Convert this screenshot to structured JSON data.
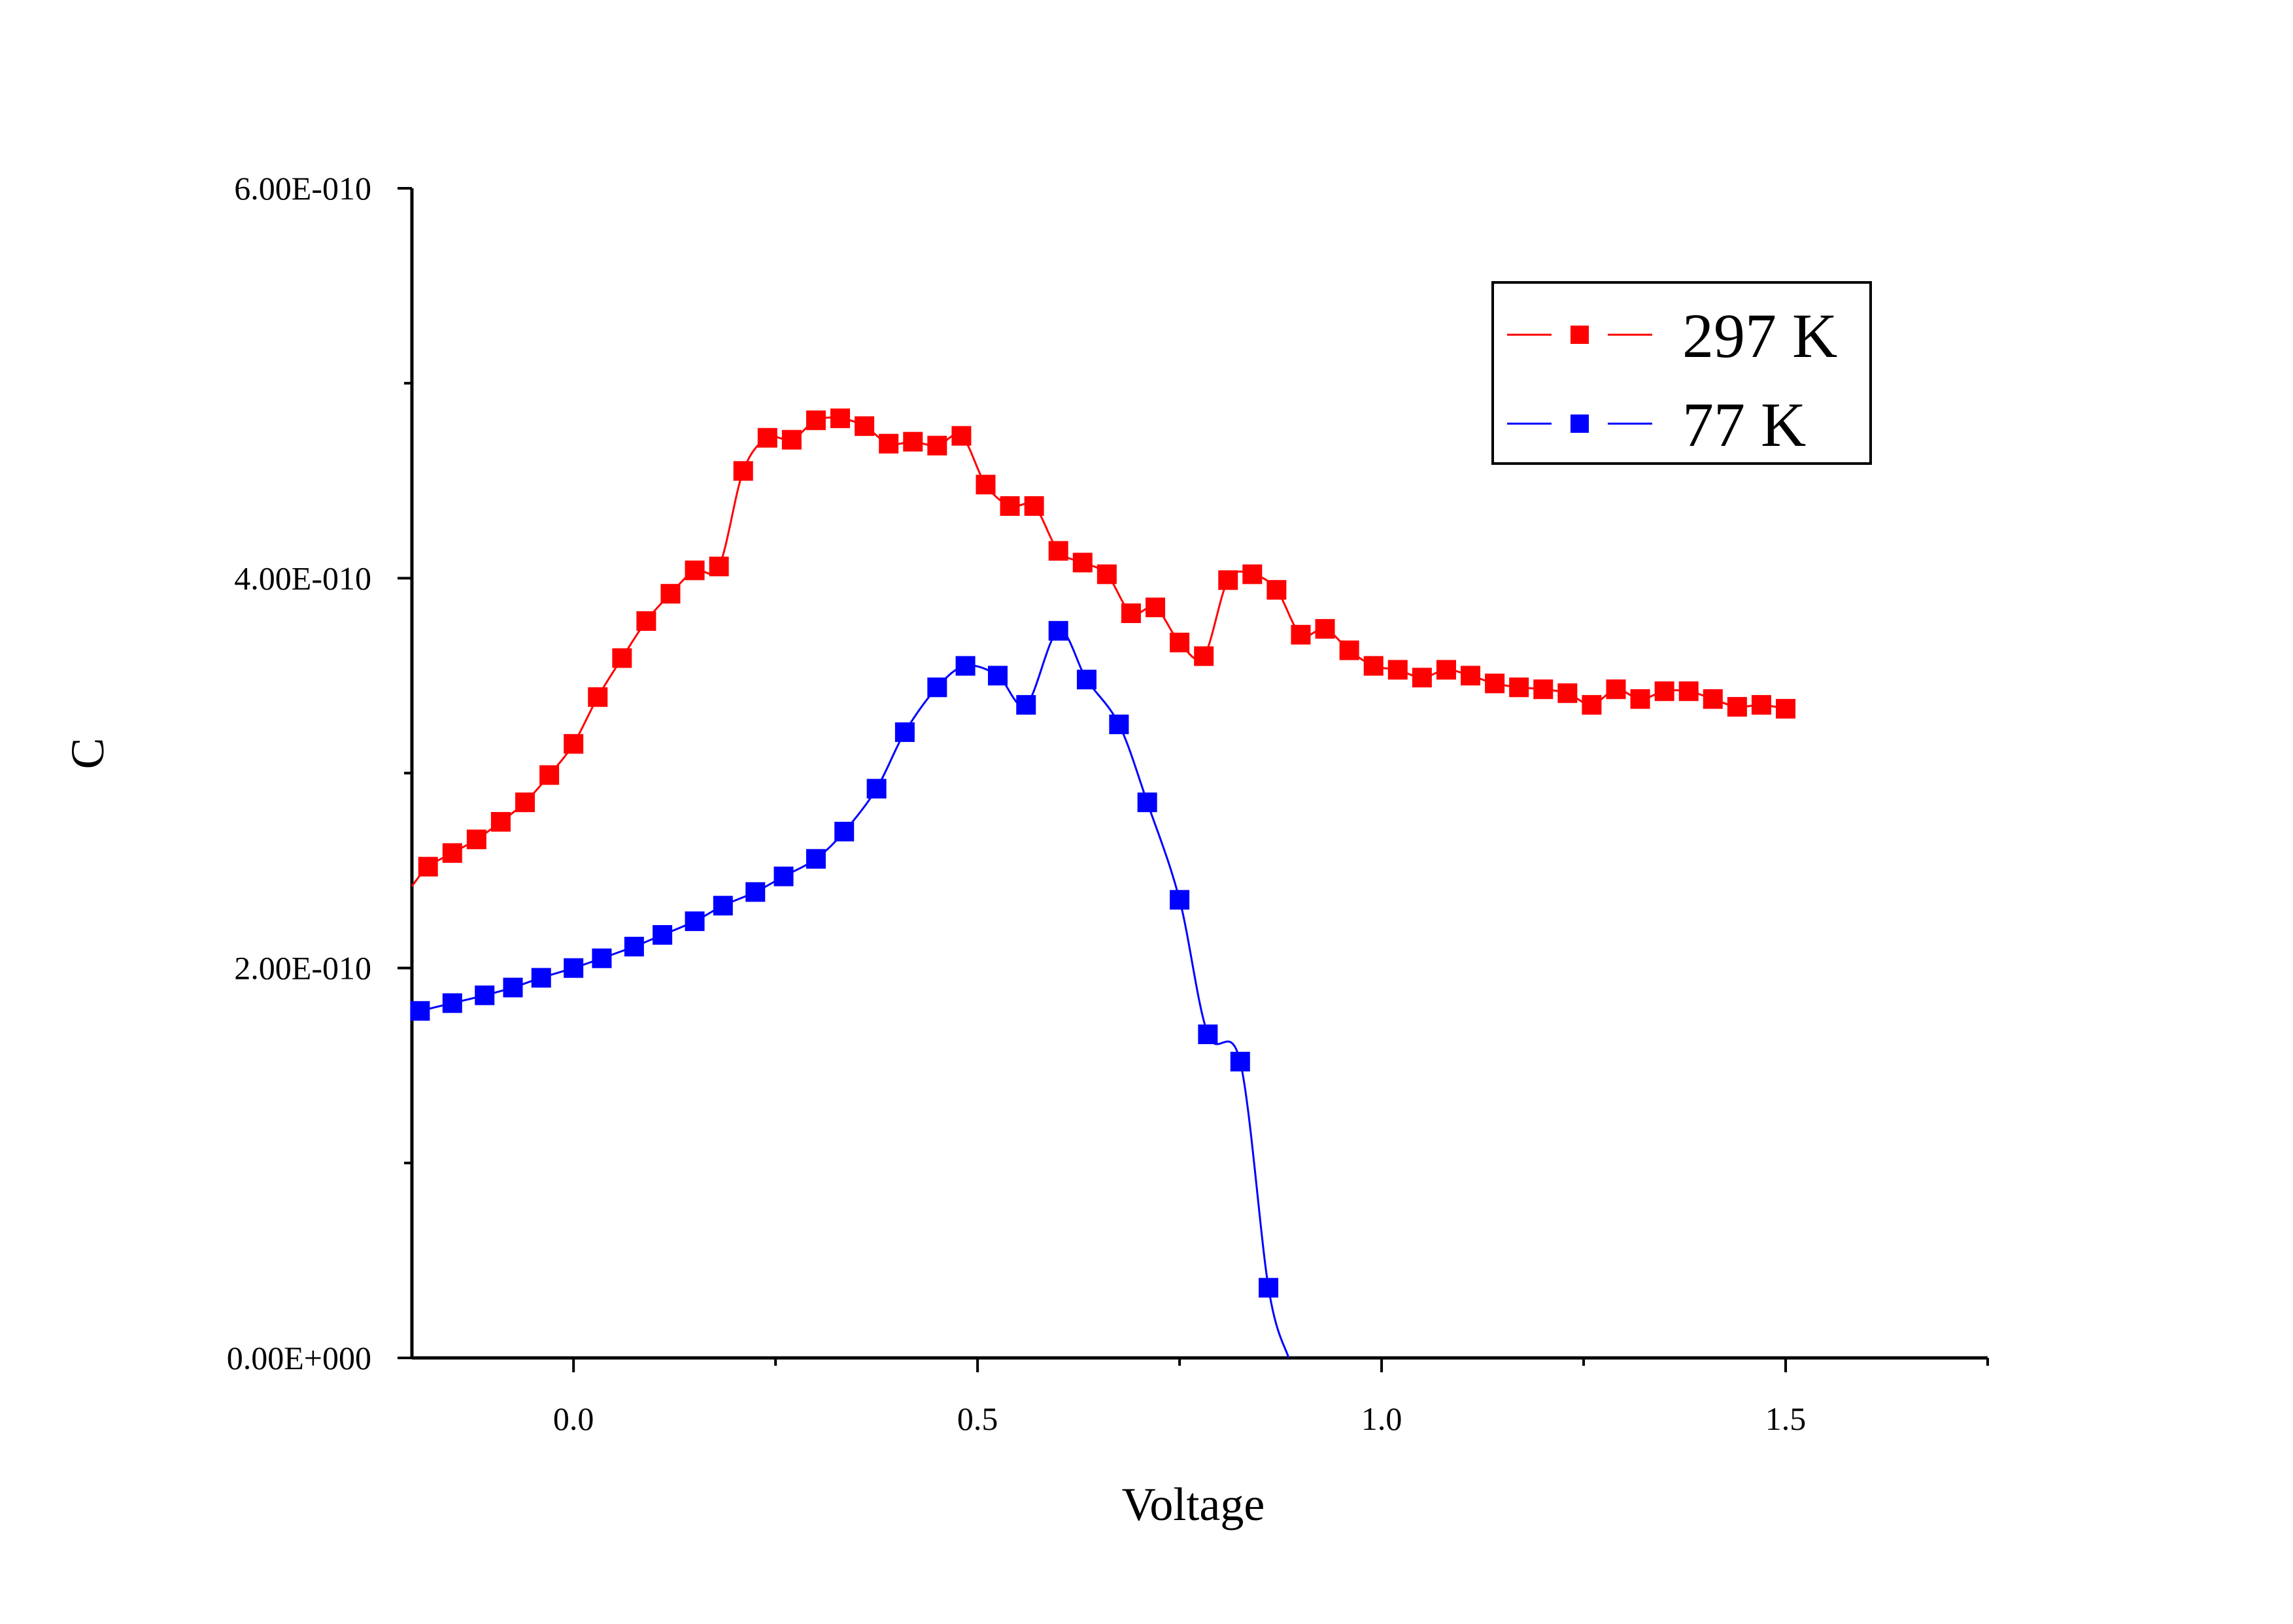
{
  "chart_data": {
    "type": "line",
    "title": "",
    "xlabel": "Voltage",
    "ylabel": "C",
    "xlim": [
      -0.2,
      1.75
    ],
    "ylim": [
      0,
      6e-10
    ],
    "x_ticks": [
      {
        "value": 0.0,
        "label": "0.0"
      },
      {
        "value": 0.5,
        "label": "0.5"
      },
      {
        "value": 1.0,
        "label": "1.0"
      },
      {
        "value": 1.5,
        "label": "1.5"
      }
    ],
    "y_ticks": [
      {
        "value": 0,
        "label": "0.00E+000"
      },
      {
        "value": 2e-10,
        "label": "2.00E-010"
      },
      {
        "value": 4e-10,
        "label": "4.00E-010"
      },
      {
        "value": 6e-10,
        "label": "6.00E-010"
      }
    ],
    "legend_position": "top-right",
    "series": [
      {
        "name": "297 K",
        "color": "#ff0000",
        "marker": "square",
        "x": [
          -0.18,
          -0.15,
          -0.12,
          -0.09,
          -0.06,
          -0.03,
          0.0,
          0.03,
          0.06,
          0.09,
          0.12,
          0.15,
          0.18,
          0.21,
          0.24,
          0.27,
          0.3,
          0.33,
          0.36,
          0.39,
          0.42,
          0.45,
          0.48,
          0.51,
          0.54,
          0.57,
          0.6,
          0.63,
          0.66,
          0.69,
          0.72,
          0.75,
          0.78,
          0.81,
          0.84,
          0.87,
          0.9,
          0.93,
          0.96,
          0.99,
          1.02,
          1.05,
          1.08,
          1.11,
          1.14,
          1.17,
          1.2,
          1.23,
          1.26,
          1.29,
          1.32,
          1.35,
          1.38,
          1.41,
          1.44,
          1.47,
          1.5
        ],
        "values": [
          2.52e-10,
          2.59e-10,
          2.66e-10,
          2.75e-10,
          2.85e-10,
          2.99e-10,
          3.15e-10,
          3.39e-10,
          3.59e-10,
          3.78e-10,
          3.92e-10,
          4.04e-10,
          4.06e-10,
          4.55e-10,
          4.72e-10,
          4.71e-10,
          4.81e-10,
          4.82e-10,
          4.78e-10,
          4.69e-10,
          4.7e-10,
          4.68e-10,
          4.73e-10,
          4.48e-10,
          4.37e-10,
          4.37e-10,
          4.14e-10,
          4.08e-10,
          4.02e-10,
          3.82e-10,
          3.85e-10,
          3.67e-10,
          3.6e-10,
          3.99e-10,
          4.02e-10,
          3.94e-10,
          3.71e-10,
          3.74e-10,
          3.63e-10,
          3.55e-10,
          3.53e-10,
          3.49e-10,
          3.53e-10,
          3.5e-10,
          3.46e-10,
          3.44e-10,
          3.43e-10,
          3.41e-10,
          3.35e-10,
          3.43e-10,
          3.38e-10,
          3.42e-10,
          3.42e-10,
          3.38e-10,
          3.34e-10,
          3.35e-10,
          3.33e-10
        ]
      },
      {
        "name": "77 K",
        "color": "#0000ff",
        "marker": "square",
        "x": [
          -0.19,
          -0.15,
          -0.11,
          -0.075,
          -0.04,
          0.0,
          0.035,
          0.075,
          0.11,
          0.15,
          0.185,
          0.225,
          0.26,
          0.3,
          0.335,
          0.375,
          0.41,
          0.45,
          0.485,
          0.525,
          0.56,
          0.6,
          0.635,
          0.675,
          0.71,
          0.75,
          0.785,
          0.825,
          0.86
        ],
        "values": [
          1.78e-10,
          1.82e-10,
          1.86e-10,
          1.9e-10,
          1.95e-10,
          2e-10,
          2.05e-10,
          2.11e-10,
          2.17e-10,
          2.24e-10,
          2.32e-10,
          2.39e-10,
          2.47e-10,
          2.56e-10,
          2.7e-10,
          2.92e-10,
          3.21e-10,
          3.44e-10,
          3.55e-10,
          3.5e-10,
          3.35e-10,
          3.73e-10,
          3.48e-10,
          3.25e-10,
          2.85e-10,
          2.35e-10,
          1.66e-10,
          1.52e-10,
          3.6e-11
        ]
      }
    ]
  }
}
